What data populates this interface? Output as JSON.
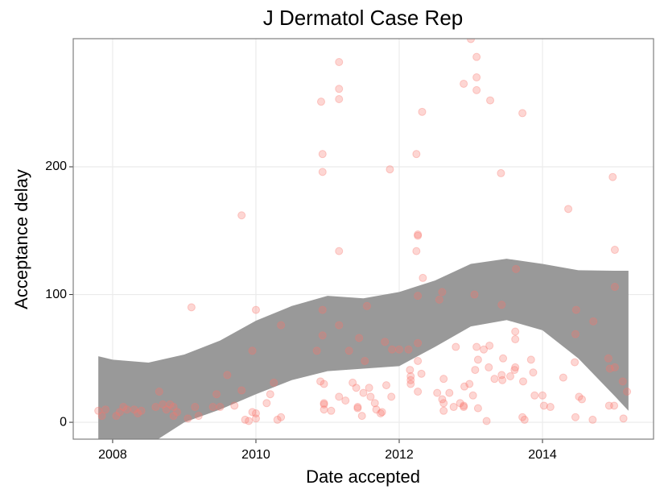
{
  "chart_data": {
    "type": "scatter",
    "title": "J Dermatol Case Rep",
    "x_label": "Date accepted",
    "y_label": "Acceptance delay",
    "color": "#f8766d",
    "grid": true,
    "xlim": [
      2007.45,
      2015.55
    ],
    "ylim": [
      -13.2,
      300.3
    ],
    "xticks": [
      2008,
      2010,
      2012,
      2014
    ],
    "yticks": [
      0,
      100,
      200
    ],
    "x": [
      2007.8,
      2007.85,
      2007.9,
      2008.05,
      2008.1,
      2008.15,
      2008.2,
      2008.3,
      2008.35,
      2008.4,
      2008.6,
      2008.65,
      2008.7,
      2008.75,
      2008.8,
      2008.85,
      2008.85,
      2008.9,
      2009.05,
      2009.1,
      2009.15,
      2009.2,
      2009.4,
      2009.45,
      2009.5,
      2009.6,
      2009.7,
      2009.8,
      2009.8,
      2009.85,
      2009.9,
      2009.95,
      2009.95,
      2010.0,
      2010.0,
      2010.0,
      2010.15,
      2010.2,
      2010.25,
      2010.3,
      2010.35,
      2010.35,
      2010.85,
      2010.9,
      2010.95,
      2010.95,
      2010.91,
      2010.93,
      2010.93,
      2010.93,
      2010.93,
      2010.95,
      2010.95,
      2011.05,
      2011.16,
      2011.16,
      2011.16,
      2011.16,
      2011.16,
      2011.16,
      2011.25,
      2011.3,
      2011.35,
      2011.4,
      2011.42,
      2011.42,
      2011.44,
      2011.48,
      2011.5,
      2011.52,
      2011.55,
      2011.58,
      2011.6,
      2011.66,
      2011.68,
      2011.74,
      2011.8,
      2011.76,
      2011.82,
      2011.87,
      2011.89,
      2011.9,
      2012.0,
      2012.13,
      2012.15,
      2012.16,
      2012.16,
      2012.16,
      2012.24,
      2012.26,
      2012.26,
      2012.24,
      2012.26,
      2012.26,
      2012.26,
      2012.26,
      2012.31,
      2012.32,
      2012.33,
      2012.56,
      2012.6,
      2012.62,
      2012.53,
      2012.6,
      2012.62,
      2012.62,
      2012.7,
      2012.79,
      2012.76,
      2012.85,
      2012.9,
      2012.9,
      2012.91,
      2012.9,
      2012.98,
      2013.0,
      2013.05,
      2013.08,
      2013.08,
      2013.08,
      2013.06,
      2013.08,
      2013.1,
      2013.03,
      2013.1,
      2013.18,
      2013.26,
      2013.22,
      2013.25,
      2013.27,
      2013.33,
      2013.42,
      2013.43,
      2013.43,
      2013.45,
      2013.44,
      2013.55,
      2013.61,
      2013.62,
      2013.62,
      2013.62,
      2013.63,
      2013.72,
      2013.72,
      2013.75,
      2013.73,
      2013.84,
      2013.87,
      2013.89,
      2014.0,
      2014.02,
      2014.11,
      2014.29,
      2014.36,
      2014.47,
      2014.46,
      2014.45,
      2014.46,
      2014.51,
      2014.55,
      2014.7,
      2014.71,
      2014.92,
      2014.94,
      2014.93,
      2014.98,
      2015.0,
      2015.01,
      2015.01,
      2015.01,
      2015.12,
      2015.13,
      2015.18
    ],
    "values": [
      9,
      5,
      10,
      5,
      8,
      12,
      10,
      10,
      7,
      9,
      12,
      24,
      14,
      10,
      14,
      12,
      5,
      8,
      3,
      90,
      12,
      5,
      12,
      22,
      12,
      37,
      13,
      162,
      25,
      2,
      1,
      56,
      8,
      88,
      7,
      3,
      15,
      22,
      31,
      2,
      76,
      4,
      56,
      32,
      10,
      15,
      251,
      210,
      196,
      88,
      68,
      30,
      14,
      9,
      76,
      134,
      253,
      261,
      282,
      20,
      17,
      56,
      31,
      27,
      12,
      11,
      66,
      5,
      23,
      48,
      91,
      27,
      20,
      15,
      10,
      7,
      63,
      8,
      29,
      198,
      20,
      57,
      57,
      57,
      41,
      36,
      33,
      30,
      210,
      147,
      146,
      134,
      99,
      62,
      48,
      24,
      38,
      243,
      113,
      96,
      102,
      34,
      23,
      18,
      15,
      9,
      23,
      59,
      12,
      15,
      13,
      12,
      28,
      265,
      30,
      300,
      100,
      286,
      270,
      260,
      41,
      59,
      49,
      21,
      11,
      57,
      60,
      1,
      43,
      252,
      34,
      195,
      92,
      37,
      50,
      33,
      36,
      41,
      43,
      65,
      71,
      120,
      242,
      4,
      2,
      32,
      49,
      39,
      21,
      21,
      13,
      12,
      35,
      167,
      88,
      69,
      47,
      4,
      20,
      18,
      2,
      79,
      50,
      42,
      13,
      192,
      13,
      43,
      135,
      106,
      32,
      3,
      24
    ],
    "band": {
      "color": "#999999",
      "x": [
        2007.8,
        2008,
        2008.5,
        2009,
        2009.5,
        2010,
        2010.5,
        2011,
        2011.5,
        2012,
        2012.5,
        2013,
        2013.5,
        2014,
        2014.5,
        2015,
        2015.2
      ],
      "upper": [
        51.7,
        49,
        46.7,
        53,
        64,
        79.5,
        91,
        99,
        97,
        102,
        111,
        124,
        128,
        124,
        119,
        118.6,
        118.6
      ],
      "lower": [
        -60,
        -40,
        -18,
        0,
        10,
        22,
        33,
        40,
        42,
        44,
        59,
        75,
        80,
        72,
        50,
        21,
        9
      ]
    }
  }
}
